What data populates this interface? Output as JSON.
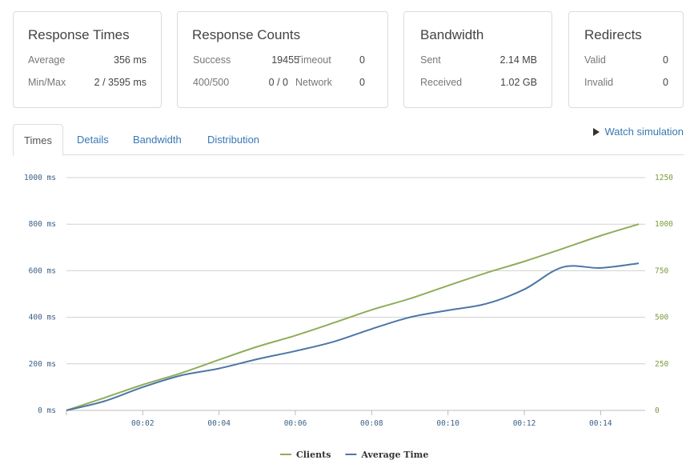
{
  "cards": {
    "response_times": {
      "title": "Response Times",
      "average_label": "Average",
      "average_value": "356 ms",
      "minmax_label": "Min/Max",
      "minmax_value": "2 / 3595 ms"
    },
    "response_counts": {
      "title": "Response Counts",
      "success_label": "Success",
      "success_value": "19455",
      "timeout_label": "Timeout",
      "timeout_value": "0",
      "errors_label": "400/500",
      "errors_value": "0 / 0",
      "network_label": "Network",
      "network_value": "0"
    },
    "bandwidth": {
      "title": "Bandwidth",
      "sent_label": "Sent",
      "sent_value": "2.14 MB",
      "received_label": "Received",
      "received_value": "1.02 GB"
    },
    "redirects": {
      "title": "Redirects",
      "valid_label": "Valid",
      "valid_value": "0",
      "invalid_label": "Invalid",
      "invalid_value": "0"
    }
  },
  "tabs": [
    {
      "label": "Times",
      "active": true
    },
    {
      "label": "Details",
      "active": false
    },
    {
      "label": "Bandwidth",
      "active": false
    },
    {
      "label": "Distribution",
      "active": false
    }
  ],
  "watch_simulation_label": "Watch simulation",
  "icons": {
    "watch": "play-icon"
  },
  "colors": {
    "clients": "#8fad5a",
    "average_time": "#4c76a6",
    "link": "#3a78b4"
  },
  "chart_data": {
    "type": "line",
    "x": [
      "00:00",
      "00:01",
      "00:02",
      "00:03",
      "00:04",
      "00:05",
      "00:06",
      "00:07",
      "00:08",
      "00:09",
      "00:10",
      "00:11",
      "00:12",
      "00:13",
      "00:14",
      "00:15"
    ],
    "x_tick_labels": [
      "00:02",
      "00:04",
      "00:06",
      "00:08",
      "00:10",
      "00:12",
      "00:14"
    ],
    "y_left": {
      "ticks": [
        0,
        200,
        400,
        600,
        800,
        1000
      ],
      "tick_labels": [
        "0 ms",
        "200 ms",
        "400 ms",
        "600 ms",
        "800 ms",
        "1000 ms"
      ],
      "range": [
        0,
        1000
      ]
    },
    "y_right": {
      "ticks": [
        0,
        250,
        500,
        750,
        1000,
        1250
      ],
      "tick_labels": [
        "0",
        "250",
        "500",
        "750",
        "1000",
        "1250"
      ],
      "range": [
        0,
        1250
      ]
    },
    "series": [
      {
        "name": "Clients",
        "axis": "right",
        "color": "#8fad5a",
        "values": [
          0,
          68,
          138,
          200,
          272,
          342,
          402,
          470,
          540,
          600,
          670,
          738,
          800,
          868,
          938,
          1000
        ]
      },
      {
        "name": "Average Time",
        "axis": "left",
        "color": "#4c76a6",
        "values": [
          0,
          40,
          100,
          150,
          180,
          220,
          255,
          295,
          350,
          400,
          430,
          458,
          520,
          615,
          612,
          632
        ]
      }
    ],
    "grid": true,
    "legend": "bottom-center"
  }
}
